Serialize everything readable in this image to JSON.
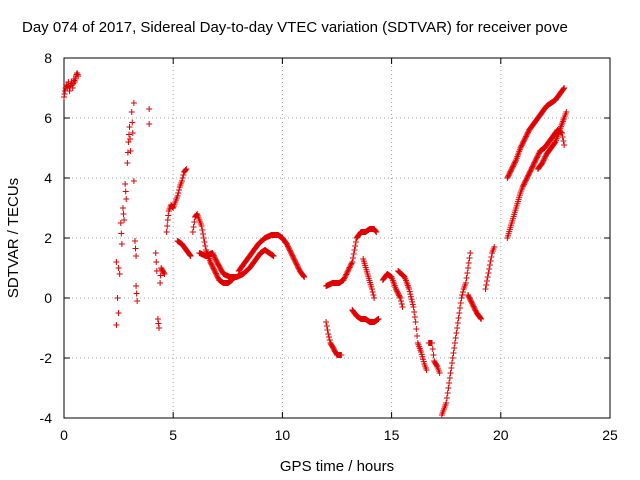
{
  "chart_data": {
    "type": "scatter",
    "title": "Day 074 of 2017, Sidereal Day-to-day VTEC variation (SDTVAR) for receiver pove",
    "xlabel": "GPS time / hours",
    "ylabel": "SDTVAR / TECUs",
    "xlim": [
      0,
      25
    ],
    "ylim": [
      -4,
      8
    ],
    "xticks": [
      "0",
      "5",
      "10",
      "15",
      "20",
      "25"
    ],
    "yticks": [
      "-4",
      "-2",
      "0",
      "2",
      "4",
      "6",
      "8"
    ],
    "grid": true,
    "marker": "+",
    "color": "#e00000",
    "series": [
      {
        "name": "SDTVAR",
        "points": [
          [
            0.0,
            6.7
          ],
          [
            0.05,
            6.9
          ],
          [
            0.1,
            7.1
          ],
          [
            0.15,
            7.0
          ],
          [
            0.2,
            7.2
          ],
          [
            0.25,
            6.9
          ],
          [
            0.3,
            7.1
          ],
          [
            0.35,
            7.2
          ],
          [
            0.4,
            7.0
          ],
          [
            0.45,
            7.3
          ],
          [
            0.5,
            7.2
          ],
          [
            0.55,
            7.4
          ],
          [
            0.6,
            7.5
          ],
          [
            0.65,
            7.4
          ],
          [
            2.4,
            1.2
          ],
          [
            2.4,
            -0.9
          ],
          [
            2.45,
            0.0
          ],
          [
            2.5,
            1.0
          ],
          [
            2.5,
            -0.5
          ],
          [
            2.55,
            0.8
          ],
          [
            2.6,
            2.5
          ],
          [
            2.65,
            1.8
          ],
          [
            2.7,
            3.0
          ],
          [
            2.75,
            2.6
          ],
          [
            2.8,
            3.8
          ],
          [
            2.85,
            3.3
          ],
          [
            2.9,
            4.5
          ],
          [
            2.95,
            5.2
          ],
          [
            3.0,
            5.7
          ],
          [
            3.05,
            4.9
          ],
          [
            3.1,
            6.2
          ],
          [
            3.15,
            5.5
          ],
          [
            3.2,
            6.5
          ],
          [
            3.2,
            3.9
          ],
          [
            3.25,
            1.9
          ],
          [
            3.3,
            1.4
          ],
          [
            3.3,
            0.4
          ],
          [
            3.35,
            -0.1
          ],
          [
            3.9,
            6.3
          ],
          [
            3.9,
            5.8
          ],
          [
            4.2,
            1.5
          ],
          [
            4.25,
            0.9
          ],
          [
            4.3,
            -0.7
          ],
          [
            4.35,
            -1.0
          ],
          [
            4.4,
            0.5
          ],
          [
            4.45,
            1.0
          ],
          [
            4.6,
            0.8
          ],
          [
            4.7,
            2.2
          ],
          [
            4.75,
            2.6
          ],
          [
            4.8,
            2.9
          ],
          [
            4.9,
            3.1
          ],
          [
            5.0,
            3.0
          ],
          [
            5.1,
            3.2
          ],
          [
            5.2,
            3.4
          ],
          [
            5.3,
            3.7
          ],
          [
            5.4,
            3.9
          ],
          [
            5.5,
            4.2
          ],
          [
            5.6,
            4.3
          ],
          [
            5.2,
            1.9
          ],
          [
            5.4,
            1.8
          ],
          [
            5.6,
            1.6
          ],
          [
            5.8,
            1.4
          ],
          [
            5.9,
            2.2
          ],
          [
            6.0,
            2.7
          ],
          [
            6.1,
            2.8
          ],
          [
            6.2,
            2.6
          ],
          [
            6.3,
            2.4
          ],
          [
            6.4,
            2.0
          ],
          [
            6.5,
            1.6
          ],
          [
            6.7,
            1.2
          ],
          [
            6.9,
            0.9
          ],
          [
            7.1,
            0.6
          ],
          [
            7.3,
            0.5
          ],
          [
            7.5,
            0.5
          ],
          [
            7.7,
            0.6
          ],
          [
            6.2,
            1.5
          ],
          [
            6.5,
            1.4
          ],
          [
            6.8,
            1.5
          ],
          [
            7.0,
            1.2
          ],
          [
            7.3,
            0.8
          ],
          [
            7.6,
            0.7
          ],
          [
            7.9,
            0.7
          ],
          [
            8.2,
            0.8
          ],
          [
            8.5,
            1.0
          ],
          [
            8.8,
            1.3
          ],
          [
            9.0,
            1.5
          ],
          [
            9.2,
            1.6
          ],
          [
            9.4,
            1.5
          ],
          [
            9.6,
            1.4
          ],
          [
            8.0,
            0.9
          ],
          [
            8.3,
            1.2
          ],
          [
            8.6,
            1.5
          ],
          [
            8.9,
            1.8
          ],
          [
            9.2,
            2.0
          ],
          [
            9.5,
            2.1
          ],
          [
            9.8,
            2.1
          ],
          [
            10.0,
            2.0
          ],
          [
            10.2,
            1.8
          ],
          [
            10.4,
            1.5
          ],
          [
            10.6,
            1.2
          ],
          [
            10.8,
            0.9
          ],
          [
            11.0,
            0.7
          ],
          [
            12.0,
            -0.8
          ],
          [
            12.1,
            -1.2
          ],
          [
            12.2,
            -1.5
          ],
          [
            12.35,
            -1.7
          ],
          [
            12.5,
            -1.9
          ],
          [
            12.7,
            -1.9
          ],
          [
            12.0,
            0.4
          ],
          [
            12.3,
            0.5
          ],
          [
            12.6,
            0.5
          ],
          [
            12.8,
            0.6
          ],
          [
            13.2,
            1.2
          ],
          [
            13.3,
            1.6
          ],
          [
            13.4,
            2.0
          ],
          [
            13.6,
            2.2
          ],
          [
            13.8,
            2.2
          ],
          [
            14.0,
            2.3
          ],
          [
            14.2,
            2.3
          ],
          [
            14.3,
            2.2
          ],
          [
            13.7,
            1.3
          ],
          [
            13.9,
            0.8
          ],
          [
            14.1,
            0.3
          ],
          [
            14.2,
            0.0
          ],
          [
            13.2,
            -0.4
          ],
          [
            13.4,
            -0.6
          ],
          [
            13.6,
            -0.7
          ],
          [
            13.8,
            -0.7
          ],
          [
            14.0,
            -0.8
          ],
          [
            14.2,
            -0.8
          ],
          [
            14.4,
            -0.7
          ],
          [
            14.6,
            0.6
          ],
          [
            14.8,
            0.8
          ],
          [
            15.0,
            0.7
          ],
          [
            15.2,
            0.3
          ],
          [
            15.4,
            0.0
          ],
          [
            15.5,
            -0.3
          ],
          [
            15.3,
            0.9
          ],
          [
            15.6,
            0.7
          ],
          [
            15.8,
            0.3
          ],
          [
            16.0,
            -0.3
          ],
          [
            16.1,
            -0.8
          ],
          [
            16.2,
            -1.5
          ],
          [
            16.35,
            -1.8
          ],
          [
            16.5,
            -2.2
          ],
          [
            16.6,
            -2.4
          ],
          [
            16.7,
            -1.5
          ],
          [
            16.85,
            -1.5
          ],
          [
            16.95,
            -2.1
          ],
          [
            17.1,
            -2.3
          ],
          [
            17.2,
            -2.5
          ],
          [
            17.3,
            -3.9
          ],
          [
            17.4,
            -3.7
          ],
          [
            17.5,
            -3.5
          ],
          [
            17.6,
            -3.0
          ],
          [
            17.7,
            -2.5
          ],
          [
            17.8,
            -2.0
          ],
          [
            17.9,
            -1.5
          ],
          [
            18.0,
            -1.0
          ],
          [
            18.1,
            -0.5
          ],
          [
            18.2,
            0.0
          ],
          [
            18.3,
            0.3
          ],
          [
            18.4,
            0.5
          ],
          [
            18.5,
            1.0
          ],
          [
            18.6,
            1.5
          ],
          [
            18.5,
            0.1
          ],
          [
            18.7,
            -0.2
          ],
          [
            18.9,
            -0.5
          ],
          [
            19.1,
            -0.7
          ],
          [
            19.3,
            0.3
          ],
          [
            19.4,
            0.7
          ],
          [
            19.5,
            1.1
          ],
          [
            19.6,
            1.5
          ],
          [
            19.7,
            1.7
          ],
          [
            20.3,
            2.0
          ],
          [
            20.5,
            2.5
          ],
          [
            20.7,
            3.0
          ],
          [
            20.9,
            3.5
          ],
          [
            21.0,
            3.7
          ],
          [
            21.2,
            4.0
          ],
          [
            21.4,
            4.3
          ],
          [
            21.6,
            4.6
          ],
          [
            21.8,
            4.9
          ],
          [
            22.0,
            5.0
          ],
          [
            22.2,
            5.2
          ],
          [
            22.4,
            5.4
          ],
          [
            22.6,
            5.6
          ],
          [
            22.8,
            5.5
          ],
          [
            22.9,
            5.1
          ],
          [
            20.3,
            4.0
          ],
          [
            20.5,
            4.3
          ],
          [
            20.7,
            4.6
          ],
          [
            20.9,
            5.0
          ],
          [
            21.1,
            5.3
          ],
          [
            21.3,
            5.6
          ],
          [
            21.5,
            5.8
          ],
          [
            21.7,
            6.0
          ],
          [
            21.9,
            6.2
          ],
          [
            22.1,
            6.4
          ],
          [
            22.3,
            6.5
          ],
          [
            22.5,
            6.6
          ],
          [
            22.7,
            6.8
          ],
          [
            22.9,
            7.0
          ],
          [
            21.7,
            4.3
          ],
          [
            21.9,
            4.5
          ],
          [
            22.1,
            4.8
          ],
          [
            22.3,
            5.0
          ],
          [
            22.5,
            5.2
          ],
          [
            22.7,
            5.6
          ],
          [
            22.9,
            6.0
          ],
          [
            23.0,
            6.2
          ]
        ]
      }
    ]
  }
}
